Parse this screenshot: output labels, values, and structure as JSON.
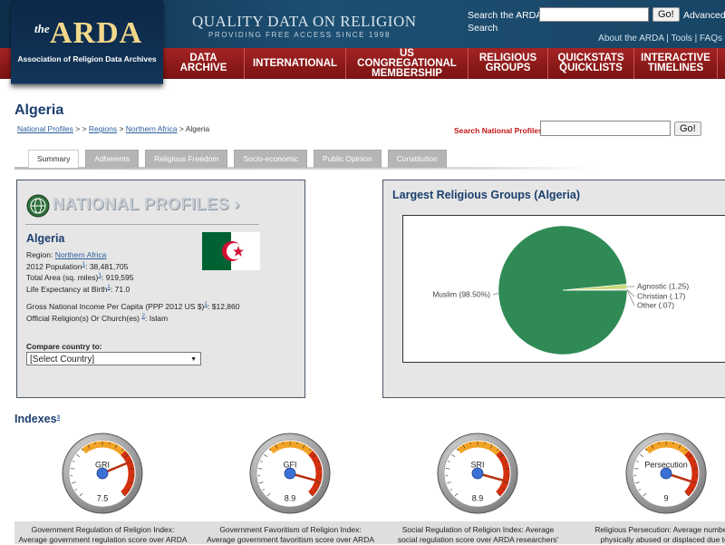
{
  "header": {
    "logo_the": "the",
    "logo_name": "ARDA",
    "logo_subtitle": "Association of Religion Data Archives",
    "tagline": "QUALITY DATA ON RELIGION",
    "tagline_sub": "PROVIDING FREE ACCESS SINCE 1998",
    "search_label": "Search the ARDA",
    "search_button": "Go!",
    "advanced_search": [
      "Advanced",
      "Search"
    ],
    "links": [
      "About the ARDA",
      "Tools",
      "FAQs"
    ],
    "link_separator": "|"
  },
  "nav": [
    "DATA ARCHIVE",
    "INTERNATIONAL",
    "US CONGREGATIONAL MEMBERSHIP",
    "RELIGIOUS GROUPS",
    "QUICKSTATS QUICKLISTS",
    "INTERACTIVE TIMELINES"
  ],
  "page": {
    "title": "Algeria",
    "breadcrumb": [
      "National Profiles",
      " > > ",
      "Regions",
      " > ",
      "Northern Africa",
      " > Algeria"
    ],
    "search_label": "Search National Profiles:",
    "search_button": "Go!",
    "tabs": [
      "Summary",
      "Adherents",
      "Religious Freedom",
      "Socio-economic",
      "Public Opinion",
      "Constitution"
    ]
  },
  "profile": {
    "banner": "NATIONAL PROFILES",
    "country": "Algeria",
    "separator": ":",
    "facts": [
      {
        "label": "Region",
        "value": "Northern Africa",
        "link": true
      },
      {
        "label": "2012 Population",
        "note": "1",
        "value": "38,481,705"
      },
      {
        "label": "Total Area (sq. miles)",
        "note": "1",
        "value": "919,595"
      },
      {
        "label": "Life Expectancy at Birth",
        "note": "1",
        "value": "71.0"
      },
      {
        "label": "Gross National Income Per Capita (PPP 2012 US $)",
        "note": "1",
        "value": "$12,860"
      },
      {
        "label": "Official Religion(s) Or Church(es) ",
        "note": "2",
        "value": "Islam"
      }
    ],
    "compare_label": "Compare country to:",
    "compare_default": "[Select Country]"
  },
  "chart_data": {
    "type": "pie",
    "title": "Largest Religious Groups (Algeria)",
    "values": [
      98.5,
      1.25,
      0.17,
      0.07
    ],
    "value_labels": [
      "Muslim (98.50%)",
      "Agnostic (1.25)",
      "Christian (.17)",
      "Other (.07)"
    ],
    "colors": [
      "#2f8a55",
      "#c9d97c",
      "#3d6f8c",
      "#9a9a9a"
    ]
  },
  "indexes": {
    "title": "Indexes",
    "note": "3",
    "scale": [
      0,
      10
    ],
    "gauges": [
      {
        "name": "GRI",
        "value": 7.5,
        "description": [
          "Government Regulation of Religion Index:",
          "Average government regulation score over ARDA"
        ]
      },
      {
        "name": "GFI",
        "value": 8.9,
        "description": [
          "Government Favoritism of Religion Index:",
          "Average government favoritism score over ARDA"
        ]
      },
      {
        "name": "SRI",
        "value": 8.9,
        "description": [
          "Social Regulation of Religion Index: Average",
          "social regulation score over ARDA researchers'"
        ]
      },
      {
        "name": "Persecution",
        "value": 9,
        "description": [
          "Religious Persecution: Average number of",
          "physically abused or displaced due to t"
        ]
      }
    ]
  }
}
